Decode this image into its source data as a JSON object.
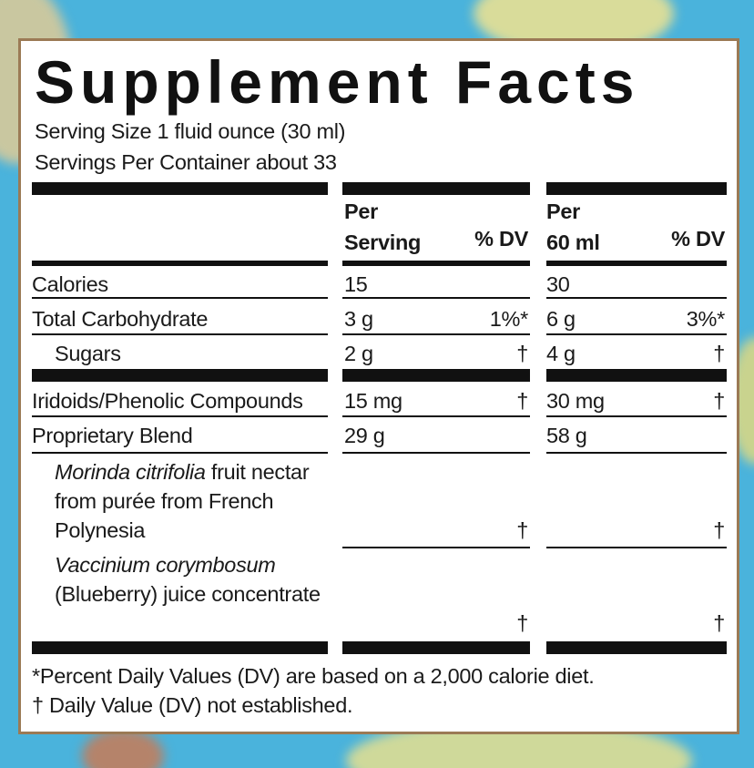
{
  "header": {
    "title": "Supplement Facts",
    "serving_size": "Serving Size 1 fluid ounce (30 ml)",
    "servings_per_container": "Servings Per Container about 33"
  },
  "table": {
    "columns": {
      "per_serving": [
        "Per",
        "Serving"
      ],
      "serving_dv": "% DV",
      "per_60ml": [
        "Per",
        "60 ml"
      ],
      "ml_dv": "% DV"
    },
    "rows": [
      {
        "label": "Calories",
        "serving": "15",
        "ml": "30"
      },
      {
        "label": "Total Carbohydrate",
        "serving": "3 g",
        "serving_dv": "1%*",
        "ml": "6 g",
        "ml_dv": "3%*"
      },
      {
        "label": "Sugars",
        "serving": "2 g",
        "serving_dv": "†",
        "ml": "4 g",
        "ml_dv": "†"
      },
      {
        "label": "Iridoids/Phenolic Compounds",
        "serving": "15 mg",
        "serving_dv": "†",
        "ml": "30 mg",
        "ml_dv": "†"
      },
      {
        "label": "Proprietary Blend",
        "serving": "29 g",
        "ml": "58 g"
      },
      {
        "label": {
          "italic": "Morinda citrifolia",
          "text": "fruit nectar from purée from French Polynesia"
        },
        "serving_dv": "†",
        "ml_dv": "†"
      },
      {
        "label": {
          "italic": "Vaccinium corymbosum",
          "text": "(Blueberry) juice concentrate"
        },
        "serving_dv": "†",
        "ml_dv": "†"
      }
    ]
  },
  "footnotes": [
    "*Percent Daily Values (DV) are based on a 2,000 calorie diet.",
    "† Daily Value (DV) not established."
  ]
}
